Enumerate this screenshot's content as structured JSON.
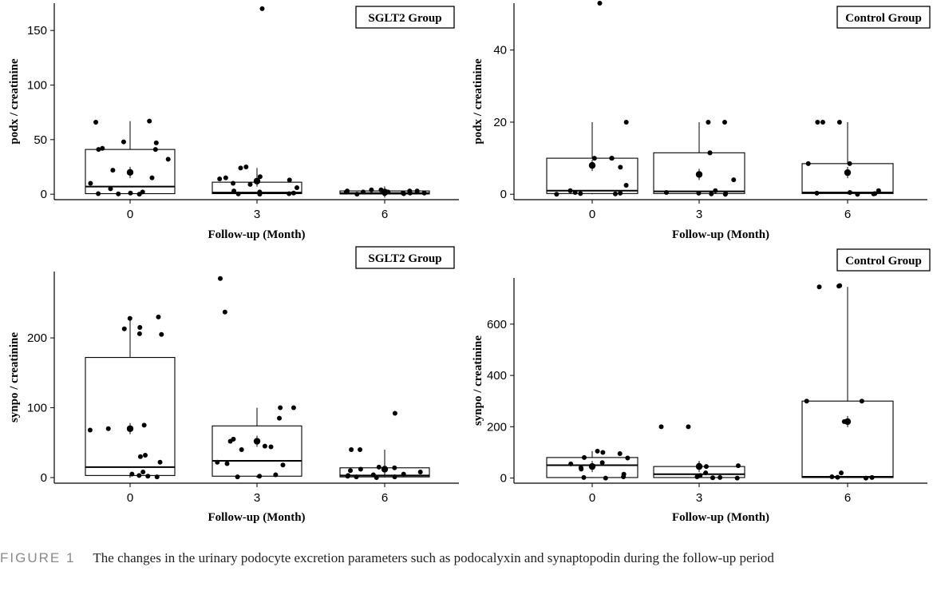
{
  "caption": {
    "label": "FIGURE 1",
    "text": "The changes in the urinary podocyte excretion parameters such as podocalyxin and synaptopodin during the follow-up period"
  },
  "chart_data": [
    {
      "type": "box",
      "legend": "SGLT2 Group",
      "xlabel": "Follow-up (Month)",
      "ylabel": "podx / creatinine",
      "categories": [
        "0",
        "3",
        "6"
      ],
      "yticks": [
        0,
        50,
        100,
        150
      ],
      "ylim": [
        -5,
        175
      ],
      "boxes": [
        {
          "q1": 0.5,
          "median": 7,
          "q3": 41,
          "whisker_low": 0,
          "whisker_high": 67,
          "mean": 20
        },
        {
          "q1": 0.5,
          "median": 1.5,
          "q3": 11,
          "whisker_low": 0,
          "whisker_high": 24,
          "mean": 12
        },
        {
          "q1": 0.2,
          "median": 1,
          "q3": 3,
          "whisker_low": 0,
          "whisker_high": 4,
          "mean": 2
        }
      ],
      "points": [
        [
          67,
          66,
          48,
          47,
          42,
          41,
          41,
          32,
          22,
          15,
          10,
          5,
          2,
          1,
          0.5,
          0.3,
          0
        ],
        [
          170,
          25,
          24,
          16,
          15,
          14,
          13,
          10,
          9,
          6,
          3,
          2,
          1,
          0.5,
          0.3,
          0
        ],
        [
          4,
          4,
          3,
          3,
          3,
          2,
          2,
          2,
          1,
          1,
          1,
          1,
          0.5,
          0.5,
          0
        ]
      ]
    },
    {
      "type": "box",
      "legend": "Control Group",
      "xlabel": "Follow-up (Month)",
      "ylabel": "podx / creatinine",
      "categories": [
        "0",
        "3",
        "6"
      ],
      "yticks": [
        0,
        20,
        40
      ],
      "ylim": [
        -1.5,
        53
      ],
      "boxes": [
        {
          "q1": 0.2,
          "median": 1,
          "q3": 10,
          "whisker_low": 0,
          "whisker_high": 20,
          "mean": 8
        },
        {
          "q1": 0.2,
          "median": 0.8,
          "q3": 11.5,
          "whisker_low": 0,
          "whisker_high": 20,
          "mean": 5.5
        },
        {
          "q1": 0.2,
          "median": 0.5,
          "q3": 8.5,
          "whisker_low": 0,
          "whisker_high": 20,
          "mean": 6
        }
      ],
      "points": [
        [
          53,
          20,
          10,
          10,
          10,
          7.5,
          2.5,
          1,
          0.5,
          0.3,
          0.2,
          0.1,
          0
        ],
        [
          20,
          20,
          11.5,
          11.5,
          4,
          1,
          0.5,
          0.3,
          0.2,
          0.1,
          0
        ],
        [
          20,
          20,
          20,
          8.5,
          8.5,
          1,
          0.5,
          0.3,
          0.2,
          0.1,
          0
        ]
      ]
    },
    {
      "type": "box",
      "legend": "SGLT2 Group",
      "xlabel": "Follow-up (Month)",
      "ylabel": "synpo / creatinine",
      "categories": [
        "0",
        "3",
        "6"
      ],
      "yticks": [
        0,
        100,
        200
      ],
      "ylim": [
        -8,
        295
      ],
      "boxes": [
        {
          "q1": 3,
          "median": 15,
          "q3": 172,
          "whisker_low": 0,
          "whisker_high": 228,
          "mean": 70
        },
        {
          "q1": 2,
          "median": 24,
          "q3": 74,
          "whisker_low": 0,
          "whisker_high": 100,
          "mean": 52
        },
        {
          "q1": 1,
          "median": 3,
          "q3": 14,
          "whisker_low": 0,
          "whisker_high": 40,
          "mean": 12
        }
      ],
      "points": [
        [
          230,
          228,
          215,
          213,
          206,
          205,
          75,
          70,
          68,
          32,
          30,
          22,
          8,
          5,
          3,
          2,
          1
        ],
        [
          285,
          237,
          100,
          100,
          85,
          55,
          52,
          45,
          44,
          40,
          22,
          20,
          18,
          4,
          2,
          1
        ],
        [
          92,
          40,
          40,
          15,
          14,
          12,
          10,
          8,
          5,
          4,
          3,
          2,
          1,
          1,
          0
        ]
      ]
    },
    {
      "type": "box",
      "legend": "Control Group",
      "xlabel": "Follow-up (Month)",
      "ylabel": "synpo / creatinine",
      "categories": [
        "0",
        "3",
        "6"
      ],
      "yticks": [
        0,
        200,
        400,
        600
      ],
      "ylim": [
        -20,
        780
      ],
      "boxes": [
        {
          "q1": 2,
          "median": 50,
          "q3": 80,
          "whisker_low": 0,
          "whisker_high": 105,
          "mean": 45
        },
        {
          "q1": 2,
          "median": 15,
          "q3": 45,
          "whisker_low": 0,
          "whisker_high": 50,
          "mean": 45
        },
        {
          "q1": 2,
          "median": 5,
          "q3": 300,
          "whisker_low": 0,
          "whisker_high": 745,
          "mean": 220
        },
        {
          "dummy": true
        }
      ],
      "points": [
        [
          105,
          100,
          95,
          80,
          78,
          60,
          55,
          40,
          35,
          15,
          5,
          2,
          0
        ],
        [
          200,
          200,
          50,
          48,
          45,
          20,
          10,
          5,
          2,
          1,
          0
        ],
        [
          750,
          748,
          745,
          300,
          300,
          220,
          20,
          5,
          3,
          2,
          0
        ]
      ]
    }
  ]
}
